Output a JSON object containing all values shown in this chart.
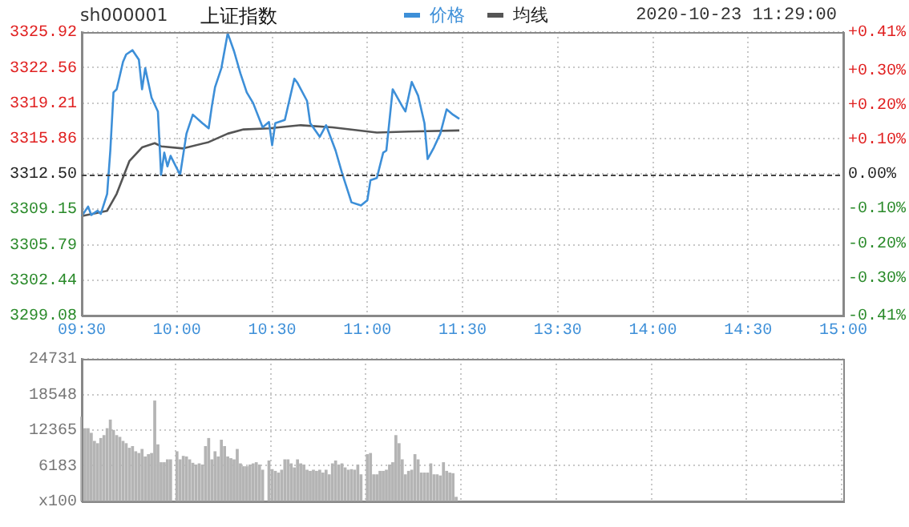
{
  "chart_data": [
    {
      "type": "line",
      "title": "上证指数",
      "subtitle": "sh000001",
      "annotations": [
        "2020-10-23 11:29:00"
      ],
      "legend": "top",
      "grid": true,
      "categories": [
        "09:30",
        null,
        null,
        null,
        null,
        null,
        null,
        null,
        null,
        null,
        null,
        null,
        null,
        null,
        null,
        null,
        null,
        null,
        null,
        null,
        null,
        null,
        null,
        null,
        null,
        null,
        null,
        null,
        null,
        null,
        "10:00",
        null,
        null,
        null,
        null,
        null,
        null,
        null,
        null,
        null,
        null,
        null,
        null,
        null,
        null,
        null,
        null,
        null,
        null,
        null,
        null,
        null,
        null,
        null,
        null,
        null,
        null,
        null,
        null,
        null,
        "10:30",
        null,
        null,
        null,
        null,
        null,
        null,
        null,
        null,
        null,
        null,
        null,
        null,
        null,
        null,
        null,
        null,
        null,
        null,
        null,
        null,
        null,
        null,
        null,
        null,
        null,
        null,
        null,
        null,
        null,
        "11:00",
        null,
        null,
        null,
        null,
        null,
        null,
        null,
        null,
        null,
        null,
        null,
        null,
        null,
        null,
        null,
        null,
        null,
        null,
        null,
        null,
        null,
        null,
        null,
        null,
        null,
        null,
        null,
        null,
        null,
        "11:30",
        null,
        null,
        null,
        null,
        null,
        null,
        null,
        null,
        null,
        null,
        null,
        null,
        null,
        null,
        null,
        null,
        null,
        null,
        null,
        null,
        null,
        null,
        null,
        null,
        null,
        null,
        null,
        null,
        null,
        "13:30",
        null,
        null,
        null,
        null,
        null,
        null,
        null,
        null,
        null,
        null,
        null,
        null,
        null,
        null,
        null,
        null,
        null,
        null,
        null,
        null,
        null,
        null,
        null,
        null,
        null,
        null,
        null,
        null,
        null,
        "14:00",
        null,
        null,
        null,
        null,
        null,
        null,
        null,
        null,
        null,
        null,
        null,
        null,
        null,
        null,
        null,
        null,
        null,
        null,
        null,
        null,
        null,
        null,
        null,
        null,
        null,
        null,
        null,
        null,
        null,
        "14:30",
        null,
        null,
        null,
        null,
        null,
        null,
        null,
        null,
        null,
        null,
        null,
        null,
        null,
        null,
        null,
        null,
        null,
        null,
        null,
        null,
        null,
        null,
        null,
        null,
        null,
        null,
        null,
        null,
        null,
        "15:00"
      ],
      "ylim": [
        3299.08,
        3325.92
      ],
      "yticks": [
        3299.08,
        3302.44,
        3305.79,
        3309.15,
        {
          "value": 3312.5,
          "label": "3312.50"
        },
        3315.86,
        3319.21,
        3322.56,
        3325.92
      ],
      "y2lim": [
        -0.41,
        0.41
      ],
      "y2ticks": [
        {
          "value": -0.41,
          "label": "-0.41%"
        },
        {
          "value": -0.3,
          "label": "-0.30%"
        },
        {
          "value": -0.2,
          "label": "-0.20%"
        },
        {
          "value": -0.1,
          "label": "-0.10%"
        },
        {
          "value": 0,
          "label": "0.00%"
        },
        {
          "value": 0.1,
          "label": "+0.10%"
        },
        {
          "value": 0.2,
          "label": "+0.20%"
        },
        {
          "value": 0.3,
          "label": "+0.30%"
        },
        {
          "value": 0.41,
          "label": "+0.41%"
        }
      ],
      "ref_lines": [
        {
          "axis": "y",
          "value": 3312.5,
          "color": "#444444",
          "line_style": "dashed"
        }
      ],
      "series": [
        {
          "name": "价格",
          "color": "#3d8fd8",
          "values": [
            3308.5,
            null,
            3309.4,
            3308.6,
            null,
            3309.0,
            3308.7,
            null,
            3310.6,
            3314.7,
            3320.2,
            3320.5,
            null,
            3323.1,
            3323.8,
            null,
            3324.2,
            null,
            3323.3,
            3320.5,
            3322.5,
            null,
            3319.7,
            null,
            3318.4,
            3312.4,
            3314.5,
            3313.2,
            3314.2,
            null,
            null,
            3312.4,
            null,
            3316.3,
            null,
            3318.1,
            null,
            null,
            3317.3,
            null,
            3316.8,
            3318.9,
            3320.7,
            null,
            3322.5,
            null,
            3325.8,
            null,
            3324.1,
            null,
            3322.0,
            null,
            3320.2,
            null,
            3319.2,
            null,
            null,
            3316.9,
            null,
            3317.4,
            3315.2,
            3317.3,
            null,
            null,
            3317.6,
            null,
            null,
            3321.5,
            3321.1,
            null,
            null,
            3319.4,
            3317.3,
            null,
            null,
            3316.0,
            null,
            3317.1,
            null,
            null,
            3314.7,
            null,
            3312.6,
            null,
            null,
            3309.8,
            null,
            null,
            3309.5,
            null,
            3310.0,
            3311.9,
            null,
            3312.1,
            null,
            3314.5,
            3314.7,
            null,
            3320.5,
            null,
            null,
            3318.9,
            3318.4,
            null,
            3321.2,
            null,
            3319.9,
            null,
            3317.3,
            3313.9,
            null,
            3315.0,
            null,
            3316.3,
            null,
            3318.6,
            null,
            3318.1,
            null,
            3317.7,
            null,
            null,
            null,
            null,
            null,
            null,
            null,
            null,
            null,
            null,
            null,
            null,
            null,
            null,
            null,
            null,
            null,
            null,
            null,
            null,
            null,
            null,
            null,
            null,
            null,
            null,
            null,
            null,
            null,
            null,
            null,
            null,
            null,
            null,
            null,
            null,
            null,
            null,
            null,
            null,
            null,
            null,
            null,
            null,
            null,
            null,
            null,
            null,
            null,
            null,
            null,
            null,
            null,
            null,
            null,
            null,
            null,
            null,
            null,
            null,
            null,
            null,
            null,
            null,
            null,
            null,
            null,
            null,
            null,
            null,
            null,
            null,
            null,
            null,
            null,
            null,
            null,
            null,
            null,
            null,
            null,
            null,
            null,
            null,
            null,
            null,
            null,
            null,
            null,
            null,
            null,
            null,
            null,
            null,
            null,
            null,
            null,
            null,
            null,
            null,
            null,
            null,
            null,
            null,
            null,
            null,
            null,
            null,
            null,
            null,
            null,
            null,
            null,
            null,
            null,
            null,
            null,
            null,
            null,
            null,
            null
          ]
        },
        {
          "name": "均线",
          "color": "#555555",
          "values": [
            3308.5,
            null,
            null,
            null,
            null,
            null,
            null,
            null,
            3309.0,
            null,
            null,
            3310.6,
            null,
            null,
            null,
            3313.7,
            null,
            null,
            null,
            3315.0,
            null,
            null,
            null,
            3315.4,
            null,
            3315.1,
            null,
            null,
            null,
            null,
            null,
            null,
            3314.9,
            null,
            null,
            null,
            null,
            null,
            null,
            null,
            3315.5,
            null,
            null,
            null,
            null,
            null,
            3316.3,
            null,
            null,
            null,
            null,
            3316.7,
            null,
            null,
            null,
            null,
            null,
            null,
            null,
            3316.8,
            null,
            null,
            null,
            null,
            null,
            null,
            null,
            null,
            null,
            3317.1,
            null,
            null,
            null,
            null,
            null,
            null,
            null,
            null,
            null,
            3316.9,
            null,
            null,
            null,
            null,
            null,
            null,
            null,
            null,
            null,
            null,
            null,
            null,
            null,
            3316.4,
            null,
            null,
            null,
            null,
            null,
            null,
            null,
            null,
            null,
            3316.5,
            null,
            null,
            null,
            null,
            null,
            null,
            null,
            null,
            null,
            null,
            null,
            null,
            null,
            null,
            null,
            3316.6,
            null,
            null,
            null,
            null,
            null,
            null,
            null,
            null,
            null,
            null,
            null,
            null,
            null,
            null,
            null,
            null,
            null,
            null,
            null,
            null,
            null,
            null,
            null,
            null,
            null,
            null,
            null,
            null,
            null,
            null,
            null,
            null,
            null,
            null,
            null,
            null,
            null,
            null,
            null,
            null,
            null,
            null,
            null,
            null,
            null,
            null,
            null,
            null,
            null,
            null,
            null,
            null,
            null,
            null,
            null,
            null,
            null,
            null,
            null,
            null,
            null,
            null,
            null,
            null,
            null,
            null,
            null,
            null,
            null,
            null,
            null,
            null,
            null,
            null,
            null,
            null,
            null,
            null,
            null,
            null,
            null,
            null,
            null,
            null,
            null,
            null,
            null,
            null,
            null,
            null,
            null,
            null,
            null,
            null,
            null,
            null,
            null,
            null,
            null,
            null,
            null,
            null,
            null,
            null,
            null,
            null,
            null,
            null,
            null,
            null,
            null,
            null,
            null,
            null,
            null,
            null,
            null,
            null,
            null,
            null,
            null
          ]
        }
      ]
    },
    {
      "type": "bar",
      "color": "#b4b4b4",
      "grid": true,
      "tick_labels": "y",
      "categories": [
        null,
        null,
        null,
        null,
        null,
        null,
        null,
        null,
        null,
        null,
        null,
        null,
        null,
        null,
        null,
        null,
        null,
        null,
        null,
        null,
        null,
        null,
        null,
        null,
        null,
        null,
        null,
        null,
        null,
        null,
        null,
        null,
        null,
        null,
        null,
        null,
        null,
        null,
        null,
        null,
        null,
        null,
        null,
        null,
        null,
        null,
        null,
        null,
        null,
        null,
        null,
        null,
        null,
        null,
        null,
        null,
        null,
        null,
        null,
        null,
        null,
        null,
        null,
        null,
        null,
        null,
        null,
        null,
        null,
        null,
        null,
        null,
        null,
        null,
        null,
        null,
        null,
        null,
        null,
        null,
        null,
        null,
        null,
        null,
        null,
        null,
        null,
        null,
        null,
        null,
        null,
        null,
        null,
        null,
        null,
        null,
        null,
        null,
        null,
        null,
        null,
        null,
        null,
        null,
        null,
        null,
        null,
        null,
        null,
        null,
        null,
        null,
        null,
        null,
        null,
        null,
        null,
        null,
        null,
        null,
        null,
        null,
        null,
        null,
        null,
        null,
        null,
        null,
        null,
        null,
        null,
        null,
        null,
        null,
        null,
        null,
        null,
        null,
        null,
        null,
        null,
        null,
        null,
        null,
        null,
        null,
        null,
        null,
        null,
        null,
        null,
        null,
        null,
        null,
        null,
        null,
        null,
        null,
        null,
        null,
        null,
        null,
        null,
        null,
        null,
        null,
        null,
        null,
        null,
        null,
        null,
        null,
        null,
        null,
        null,
        null,
        null,
        null,
        null,
        null,
        null,
        null,
        null,
        null,
        null,
        null,
        null,
        null,
        null,
        null,
        null,
        null,
        null,
        null,
        null,
        null,
        null,
        null,
        null,
        null,
        null,
        null,
        null,
        null,
        null,
        null,
        null,
        null,
        null,
        null,
        null,
        null,
        null,
        null,
        null,
        null,
        null,
        null,
        null,
        null,
        null,
        null,
        null,
        null,
        null,
        null,
        null,
        null,
        null,
        null,
        null,
        null,
        null,
        null,
        null,
        null,
        null,
        null,
        null,
        null,
        null
      ],
      "ylim": [
        0,
        24731
      ],
      "yticks": [
        {
          "value": 0,
          "label": "x100"
        },
        6183,
        12365,
        18548,
        24731
      ],
      "values": [
        14600,
        12600,
        12600,
        11800,
        10400,
        10000,
        10900,
        11400,
        12600,
        14100,
        12300,
        11400,
        11100,
        10400,
        10000,
        9200,
        9500,
        8600,
        8300,
        9000,
        7700,
        8100,
        8300,
        17400,
        9800,
        6700,
        6700,
        7200,
        7200,
        null,
        8600,
        7200,
        7800,
        7700,
        7200,
        6600,
        6300,
        6500,
        6300,
        9500,
        10900,
        7200,
        8600,
        7700,
        10600,
        9500,
        7700,
        7400,
        7200,
        9000,
        6500,
        6000,
        6000,
        6300,
        6500,
        6700,
        6300,
        5400,
        null,
        7000,
        5500,
        5200,
        4900,
        5400,
        7200,
        7200,
        6500,
        5800,
        7200,
        6500,
        6300,
        5400,
        5200,
        5400,
        5200,
        5400,
        4900,
        5400,
        4600,
        6500,
        7000,
        6300,
        6500,
        5800,
        5400,
        5500,
        5400,
        6300,
        4600,
        null,
        8100,
        8300,
        4600,
        4600,
        5200,
        5200,
        5400,
        6300,
        6700,
        11400,
        10000,
        7200,
        4600,
        5200,
        5400,
        8100,
        7200,
        4900,
        4900,
        4900,
        6500,
        4600,
        4600,
        4400,
        6700,
        5200,
        4900,
        4800,
        700,
        null,
        null,
        null,
        null,
        null,
        null,
        null,
        null,
        null,
        null,
        null,
        null,
        null,
        null,
        null,
        null,
        null,
        null,
        null,
        null,
        null,
        null,
        null,
        null,
        null,
        null,
        null,
        null,
        null,
        null,
        null,
        null,
        null,
        null,
        null,
        null,
        null,
        null,
        null,
        null,
        null,
        null,
        null,
        null,
        null,
        null,
        null,
        null,
        null,
        null,
        null,
        null,
        null,
        null,
        null,
        null,
        null,
        null,
        null,
        null,
        null,
        null,
        null,
        null,
        null,
        null,
        null,
        null,
        null,
        null,
        null,
        null,
        null,
        null,
        null,
        null,
        null,
        null,
        null,
        null,
        null,
        null,
        null,
        null,
        null,
        null,
        null,
        null,
        null,
        null,
        null,
        null,
        null,
        null,
        null,
        null,
        null,
        null,
        null,
        null,
        null,
        null,
        null,
        null,
        null,
        null,
        null,
        null,
        null,
        null,
        null,
        null,
        null,
        null,
        null,
        null,
        null,
        null,
        null,
        null,
        null,
        null
      ]
    }
  ]
}
